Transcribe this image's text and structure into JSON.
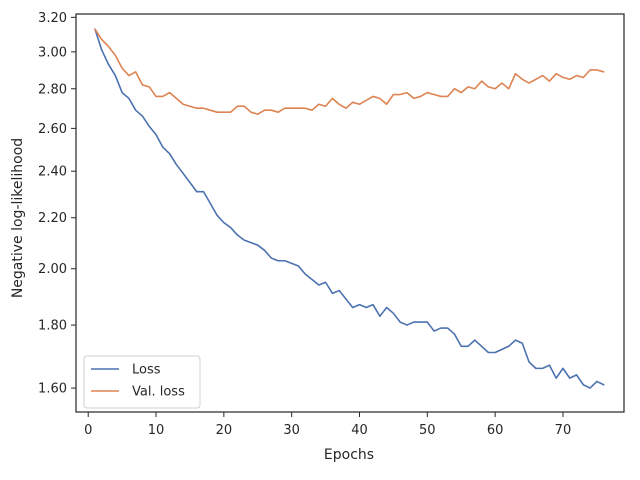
{
  "chart_data": {
    "type": "line",
    "title": "",
    "xlabel": "Epochs",
    "ylabel": "Negative log-likelihood",
    "xlim": [
      -1.8,
      79
    ],
    "ylim": [
      1.53,
      3.22
    ],
    "y_scale": "log",
    "grid": false,
    "legend_position": "lower-left",
    "x_ticks": [
      0,
      10,
      20,
      30,
      40,
      50,
      60,
      70
    ],
    "x_tick_labels": [
      "0",
      "10",
      "20",
      "30",
      "40",
      "50",
      "60",
      "70"
    ],
    "y_ticks": [
      1.6,
      1.8,
      2.0,
      2.2,
      2.4,
      2.6,
      2.8,
      3.0,
      3.2
    ],
    "y_tick_labels": [
      "1.60",
      "1.80",
      "2.00",
      "2.20",
      "2.40",
      "2.60",
      "2.80",
      "3.00",
      "3.20"
    ],
    "x": [
      1,
      2,
      3,
      4,
      5,
      6,
      7,
      8,
      9,
      10,
      11,
      12,
      13,
      14,
      15,
      16,
      17,
      18,
      19,
      20,
      21,
      22,
      23,
      24,
      25,
      26,
      27,
      28,
      29,
      30,
      31,
      32,
      33,
      34,
      35,
      36,
      37,
      38,
      39,
      40,
      41,
      42,
      43,
      44,
      45,
      46,
      47,
      48,
      49,
      50,
      51,
      52,
      53,
      54,
      55,
      56,
      57,
      58,
      59,
      60,
      61,
      62,
      63,
      64,
      65,
      66,
      67,
      68,
      69,
      70,
      71,
      72,
      73,
      74,
      75,
      76
    ],
    "series": [
      {
        "name": "Loss",
        "color": "#4c72b0",
        "values": [
          3.13,
          3.01,
          2.93,
          2.87,
          2.78,
          2.75,
          2.69,
          2.66,
          2.61,
          2.57,
          2.51,
          2.48,
          2.43,
          2.39,
          2.35,
          2.31,
          2.31,
          2.26,
          2.21,
          2.18,
          2.16,
          2.13,
          2.11,
          2.1,
          2.09,
          2.07,
          2.04,
          2.03,
          2.03,
          2.02,
          2.01,
          1.98,
          1.96,
          1.94,
          1.95,
          1.91,
          1.92,
          1.89,
          1.86,
          1.87,
          1.86,
          1.87,
          1.83,
          1.86,
          1.84,
          1.81,
          1.8,
          1.81,
          1.81,
          1.81,
          1.78,
          1.79,
          1.79,
          1.77,
          1.73,
          1.73,
          1.75,
          1.73,
          1.71,
          1.71,
          1.72,
          1.73,
          1.75,
          1.74,
          1.68,
          1.66,
          1.66,
          1.67,
          1.63,
          1.66,
          1.63,
          1.64,
          1.61,
          1.6,
          1.62,
          1.61
        ]
      },
      {
        "name": "Val. loss",
        "color": "#dd8452",
        "values": [
          3.13,
          3.07,
          3.03,
          2.98,
          2.91,
          2.87,
          2.89,
          2.82,
          2.81,
          2.76,
          2.76,
          2.78,
          2.75,
          2.72,
          2.71,
          2.7,
          2.7,
          2.69,
          2.68,
          2.68,
          2.68,
          2.71,
          2.71,
          2.68,
          2.67,
          2.69,
          2.69,
          2.68,
          2.7,
          2.7,
          2.7,
          2.7,
          2.69,
          2.72,
          2.71,
          2.75,
          2.72,
          2.7,
          2.73,
          2.72,
          2.74,
          2.76,
          2.75,
          2.72,
          2.77,
          2.77,
          2.78,
          2.75,
          2.76,
          2.78,
          2.77,
          2.76,
          2.76,
          2.8,
          2.78,
          2.81,
          2.8,
          2.84,
          2.81,
          2.8,
          2.83,
          2.8,
          2.88,
          2.85,
          2.83,
          2.85,
          2.87,
          2.84,
          2.88,
          2.86,
          2.85,
          2.87,
          2.86,
          2.9,
          2.9,
          2.89
        ]
      }
    ]
  }
}
